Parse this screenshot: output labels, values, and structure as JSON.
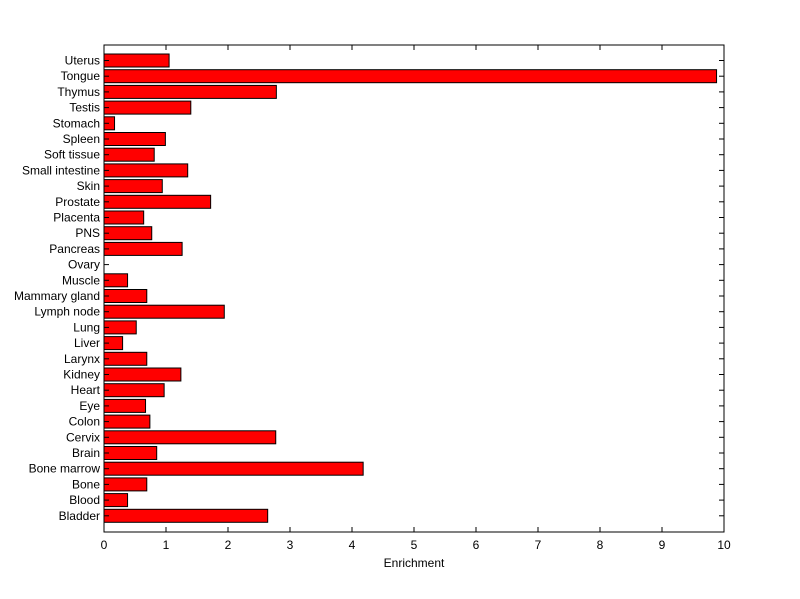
{
  "chart_data": {
    "type": "bar",
    "orientation": "horizontal",
    "title": "",
    "xlabel": "Enrichment",
    "ylabel": "",
    "xlim": [
      0,
      10
    ],
    "xticks": [
      "0",
      "1",
      "2",
      "3",
      "4",
      "5",
      "6",
      "7",
      "8",
      "9",
      "10"
    ],
    "grid": false,
    "bar_color": "#ff0000",
    "bar_edge_color": "#000000",
    "categories": [
      "Uterus",
      "Tongue",
      "Thymus",
      "Testis",
      "Stomach",
      "Spleen",
      "Soft tissue",
      "Small intestine",
      "Skin",
      "Prostate",
      "Placenta",
      "PNS",
      "Pancreas",
      "Ovary",
      "Muscle",
      "Mammary gland",
      "Lymph node",
      "Lung",
      "Liver",
      "Larynx",
      "Kidney",
      "Heart",
      "Eye",
      "Colon",
      "Cervix",
      "Brain",
      "Bone marrow",
      "Bone",
      "Blood",
      "Bladder"
    ],
    "values": [
      1.05,
      9.88,
      2.78,
      1.4,
      0.17,
      0.99,
      0.81,
      1.35,
      0.94,
      1.72,
      0.64,
      0.77,
      1.26,
      0.0,
      0.38,
      0.69,
      1.94,
      0.52,
      0.3,
      0.69,
      1.24,
      0.97,
      0.67,
      0.74,
      2.77,
      0.85,
      4.18,
      0.69,
      0.38,
      2.64
    ]
  }
}
